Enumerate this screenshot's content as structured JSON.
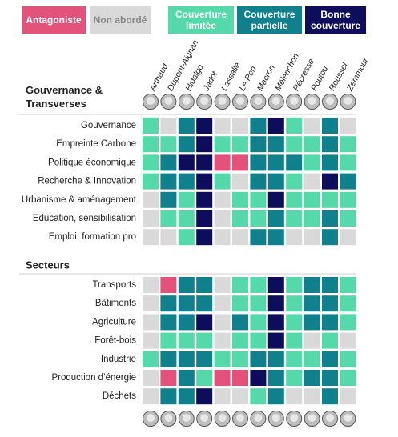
{
  "legend": [
    {
      "label": "Antagoniste",
      "color": "#e2527b"
    },
    {
      "label": "Non abordé",
      "color": "#d9d9d9"
    },
    {
      "label": "Couverture limitée",
      "color": "#55d8aa"
    },
    {
      "label": "Couverture partielle",
      "color": "#10808c"
    },
    {
      "label": "Bonne couverture",
      "color": "#0d0d5c"
    }
  ],
  "candidates": [
    "Arthaud",
    "Dupont-Aignan",
    "Hidalgo",
    "Jadot",
    "Lassalle",
    "Le Pen",
    "Macron",
    "Mélenchon",
    "Pécresse",
    "Poutou",
    "Roussel",
    "Zemmour"
  ],
  "sections": [
    {
      "title": "Gouvernance & Transverses",
      "rows": [
        {
          "label": "Gouvernance",
          "cells": [
            2,
            1,
            3,
            4,
            1,
            1,
            3,
            4,
            2,
            1,
            3,
            1
          ]
        },
        {
          "label": "Empreinte Carbone",
          "cells": [
            2,
            2,
            3,
            4,
            2,
            2,
            3,
            3,
            2,
            2,
            3,
            2
          ]
        },
        {
          "label": "Politique économique",
          "cells": [
            2,
            3,
            4,
            4,
            0,
            0,
            3,
            3,
            3,
            2,
            3,
            2
          ]
        },
        {
          "label": "Recherche & Innovation",
          "cells": [
            2,
            3,
            3,
            4,
            2,
            1,
            3,
            3,
            2,
            1,
            4,
            3
          ]
        },
        {
          "label": "Urbanisme & aménagement",
          "cells": [
            1,
            3,
            2,
            4,
            1,
            2,
            2,
            4,
            2,
            2,
            2,
            2
          ]
        },
        {
          "label": "Education, sensibilisation",
          "cells": [
            1,
            2,
            2,
            4,
            1,
            2,
            2,
            3,
            2,
            2,
            3,
            2
          ]
        },
        {
          "label": "Emploi, formation pro",
          "cells": [
            1,
            1,
            2,
            4,
            1,
            1,
            3,
            3,
            1,
            1,
            3,
            1
          ]
        }
      ]
    },
    {
      "title": "Secteurs",
      "rows": [
        {
          "label": "Transports",
          "cells": [
            1,
            0,
            3,
            3,
            1,
            2,
            2,
            4,
            2,
            3,
            3,
            2
          ]
        },
        {
          "label": "Bâtiments",
          "cells": [
            1,
            3,
            3,
            3,
            1,
            2,
            2,
            4,
            2,
            3,
            3,
            2
          ]
        },
        {
          "label": "Agriculture",
          "cells": [
            1,
            3,
            3,
            4,
            1,
            3,
            2,
            4,
            2,
            3,
            3,
            2
          ]
        },
        {
          "label": "Forêt-bois",
          "cells": [
            1,
            2,
            2,
            2,
            1,
            2,
            2,
            4,
            2,
            1,
            2,
            1
          ]
        },
        {
          "label": "Industrie",
          "cells": [
            2,
            3,
            3,
            3,
            2,
            2,
            3,
            3,
            2,
            2,
            3,
            2
          ]
        },
        {
          "label": "Production d’énergie",
          "cells": [
            1,
            0,
            3,
            2,
            0,
            0,
            4,
            3,
            2,
            3,
            3,
            2
          ]
        },
        {
          "label": "Déchets",
          "cells": [
            1,
            3,
            3,
            4,
            1,
            1,
            2,
            3,
            1,
            1,
            3,
            1
          ]
        }
      ]
    }
  ]
}
